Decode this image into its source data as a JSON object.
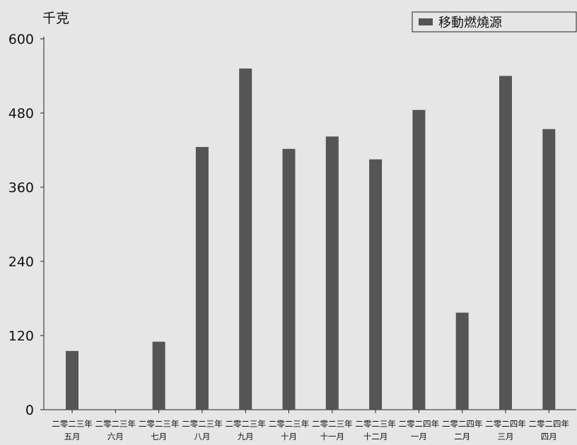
{
  "chart_data": {
    "type": "bar",
    "ylabel": "千克",
    "ylim": [
      0,
      600
    ],
    "yticks": [
      0,
      120,
      240,
      360,
      480,
      600
    ],
    "categories": [
      [
        "二零二三年",
        "五月"
      ],
      [
        "二零二三年",
        "六月"
      ],
      [
        "二零二三年",
        "七月"
      ],
      [
        "二零二三年",
        "八月"
      ],
      [
        "二零二三年",
        "九月"
      ],
      [
        "二零二三年",
        "十月"
      ],
      [
        "二零二三年",
        "十一月"
      ],
      [
        "二零二三年",
        "十二月"
      ],
      [
        "二零二四年",
        "一月"
      ],
      [
        "二零二四年",
        "二月"
      ],
      [
        "二零二四年",
        "三月"
      ],
      [
        "二零二四年",
        "四月"
      ]
    ],
    "series": [
      {
        "name": "移動燃燒源",
        "color": "#555555",
        "values": [
          95,
          0,
          110,
          425,
          552,
          422,
          442,
          405,
          485,
          157,
          540,
          454
        ]
      }
    ],
    "legend_position": "top-right",
    "grid": false
  }
}
